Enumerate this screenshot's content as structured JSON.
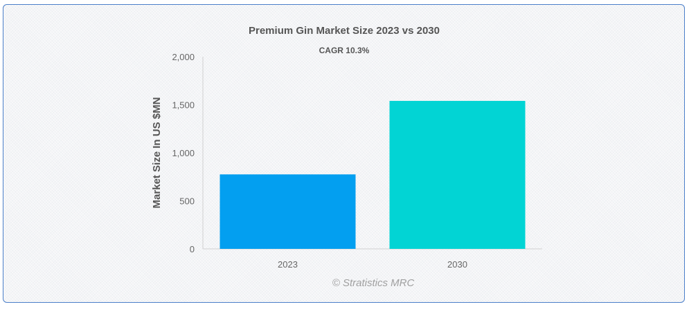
{
  "chart_data": {
    "type": "bar",
    "title": "Premium Gin Market Size 2023 vs 2030",
    "subtitle": "CAGR 10.3%",
    "ylabel": "Market Size In US $MN",
    "xlabel": "",
    "categories": [
      "2023",
      "2030"
    ],
    "values": [
      775,
      1540
    ],
    "colors": [
      "#039ff0",
      "#02d4d4"
    ],
    "ylim": [
      0,
      2000
    ],
    "yticks": [
      0,
      500,
      1000,
      1500,
      2000
    ],
    "ytick_labels": [
      "0",
      "500",
      "1,000",
      "1,500",
      "2,000"
    ],
    "grid": false,
    "legend": "none"
  },
  "credit": "© Stratistics MRC"
}
